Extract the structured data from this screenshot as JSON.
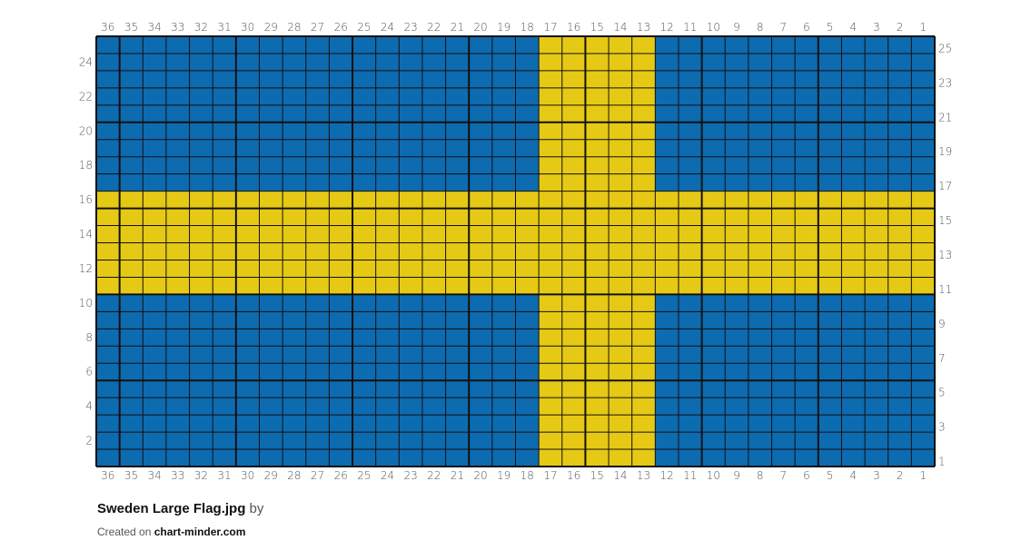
{
  "chart": {
    "columns": 36,
    "rows": 25,
    "colors": {
      "blue": "#0d6bb0",
      "yellow": "#e6c915",
      "grid": "#111111"
    },
    "cross": {
      "yellow_columns": [
        13,
        17
      ],
      "yellow_rows": [
        11,
        16
      ]
    },
    "major_grid_every": 5,
    "column_numbering": "right-to-left",
    "row_numbering": "bottom-to-top",
    "left_labels": "even rows",
    "right_labels": "odd rows"
  },
  "footer": {
    "title": "Sweden Large Flag.jpg",
    "by": "by",
    "created_on": "Created on",
    "site": "chart-minder.com"
  }
}
